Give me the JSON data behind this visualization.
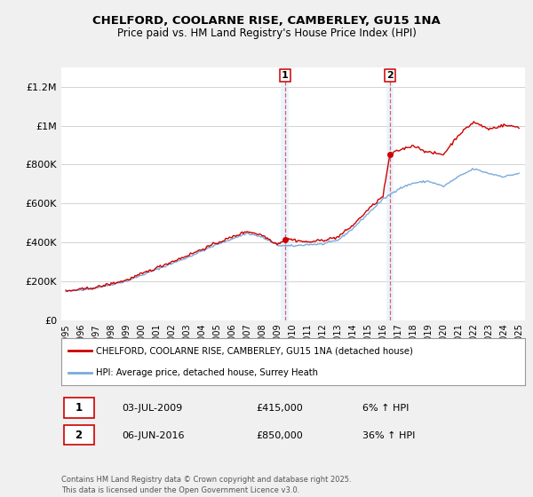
{
  "title_line1": "CHELFORD, COOLARNE RISE, CAMBERLEY, GU15 1NA",
  "title_line2": "Price paid vs. HM Land Registry's House Price Index (HPI)",
  "ylim": [
    0,
    1300000
  ],
  "yticks": [
    0,
    200000,
    400000,
    600000,
    800000,
    1000000,
    1200000
  ],
  "ytick_labels": [
    "£0",
    "£200K",
    "£400K",
    "£600K",
    "£800K",
    "£1M",
    "£1.2M"
  ],
  "vline1_year": 2009.5,
  "vline2_year": 2016.45,
  "vline_color": "#e06060",
  "vline_shade_color": "#ddeeff",
  "marker1_value": 415000,
  "marker2_value": 850000,
  "line_color_price": "#cc0000",
  "line_color_hpi": "#7aaadd",
  "legend_label1": "CHELFORD, COOLARNE RISE, CAMBERLEY, GU15 1NA (detached house)",
  "legend_label2": "HPI: Average price, detached house, Surrey Heath",
  "fn1_date": "03-JUL-2009",
  "fn1_price": "£415,000",
  "fn1_hpi": "6% ↑ HPI",
  "fn2_date": "06-JUN-2016",
  "fn2_price": "£850,000",
  "fn2_hpi": "36% ↑ HPI",
  "copyright": "Contains HM Land Registry data © Crown copyright and database right 2025.\nThis data is licensed under the Open Government Licence v3.0.",
  "bg_color": "#f0f0f0",
  "plot_bg_color": "#ffffff"
}
